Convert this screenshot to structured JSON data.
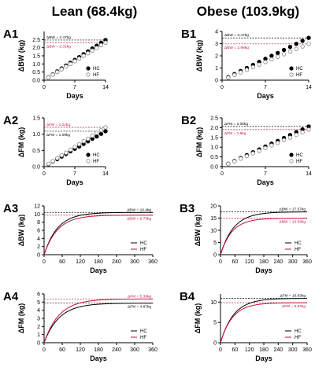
{
  "columns": [
    {
      "key": "lean",
      "title": "Lean (68.4kg)"
    },
    {
      "key": "obese",
      "title": "Obese (103.9kg)"
    }
  ],
  "colors": {
    "hc": "#000000",
    "hf": "#c0143c",
    "hf_marker_edge": "#888888"
  },
  "chart_data": [
    {
      "panel": "A1",
      "type": "scatter",
      "xlabel": "Days",
      "ylabel": "ΔBW (kg)",
      "xlim": [
        0,
        14
      ],
      "ylim": [
        0,
        3
      ],
      "xticks": [
        "0",
        "7",
        "14"
      ],
      "yticks": [
        "0.0",
        "0.5",
        "1.0",
        "1.5",
        "2.0",
        "2.5"
      ],
      "ytick_values": [
        0,
        0.5,
        1,
        1.5,
        2,
        2.5
      ],
      "xtick_values": [
        0,
        7,
        14
      ],
      "legend": "lower-right",
      "annotations": [
        {
          "text": "ΔBW = 2.47kg",
          "y": 2.47,
          "series": "HC"
        },
        {
          "text": "ΔBW = 2.31kg",
          "y": 2.31,
          "series": "HF"
        }
      ],
      "series": [
        {
          "name": "HC",
          "x": [
            1,
            2,
            3,
            4,
            5,
            6,
            7,
            8,
            9,
            10,
            11,
            12,
            13,
            14
          ],
          "y": [
            0.18,
            0.36,
            0.54,
            0.72,
            0.9,
            1.07,
            1.25,
            1.42,
            1.6,
            1.77,
            1.95,
            2.12,
            2.3,
            2.47
          ]
        },
        {
          "name": "HF",
          "x": [
            1,
            2,
            3,
            4,
            5,
            6,
            7,
            8,
            9,
            10,
            11,
            12,
            13,
            14
          ],
          "y": [
            0.17,
            0.34,
            0.5,
            0.67,
            0.84,
            1.0,
            1.17,
            1.33,
            1.5,
            1.66,
            1.82,
            1.98,
            2.15,
            2.31
          ]
        }
      ]
    },
    {
      "panel": "B1",
      "type": "scatter",
      "xlabel": "Days",
      "ylabel": "ΔBW (kg)",
      "xlim": [
        0,
        14
      ],
      "ylim": [
        0,
        4
      ],
      "xticks": [
        "0",
        "7",
        "14"
      ],
      "yticks": [
        "0",
        "1",
        "2",
        "3",
        "4"
      ],
      "ytick_values": [
        0,
        1,
        2,
        3,
        4
      ],
      "xtick_values": [
        0,
        7,
        14
      ],
      "legend": "lower-right",
      "annotations": [
        {
          "text": "ΔBW = 3.47kg",
          "y": 3.47,
          "series": "HC"
        },
        {
          "text": "ΔBW = 2.98kg",
          "y": 2.98,
          "series": "HF"
        }
      ],
      "series": [
        {
          "name": "HC",
          "x": [
            1,
            2,
            3,
            4,
            5,
            6,
            7,
            8,
            9,
            10,
            11,
            12,
            13,
            14
          ],
          "y": [
            0.25,
            0.5,
            0.75,
            1.0,
            1.25,
            1.5,
            1.75,
            2.0,
            2.23,
            2.48,
            2.73,
            2.98,
            3.23,
            3.47
          ]
        },
        {
          "name": "HF",
          "x": [
            1,
            2,
            3,
            4,
            5,
            6,
            7,
            8,
            9,
            10,
            11,
            12,
            13,
            14
          ],
          "y": [
            0.21,
            0.43,
            0.64,
            0.85,
            1.07,
            1.28,
            1.49,
            1.71,
            1.92,
            2.13,
            2.34,
            2.56,
            2.77,
            2.98
          ]
        }
      ]
    },
    {
      "panel": "A2",
      "type": "scatter",
      "xlabel": "Days",
      "ylabel": "ΔFM (kg)",
      "xlim": [
        0,
        14
      ],
      "ylim": [
        0,
        1.5
      ],
      "xticks": [
        "0",
        "7",
        "14"
      ],
      "yticks": [
        "0.0",
        "0.5",
        "1.0",
        "1.5"
      ],
      "ytick_values": [
        0,
        0.5,
        1,
        1.5
      ],
      "xtick_values": [
        0,
        7,
        14
      ],
      "legend": "lower-right",
      "annotations": [
        {
          "text": "ΔFM = 1.21kg",
          "y": 1.21,
          "series": "HF"
        },
        {
          "text": "ΔFM = 1.09kg",
          "y": 1.09,
          "series": "HC"
        }
      ],
      "series": [
        {
          "name": "HC",
          "x": [
            1,
            2,
            3,
            4,
            5,
            6,
            7,
            8,
            9,
            10,
            11,
            12,
            13,
            14
          ],
          "y": [
            0.08,
            0.16,
            0.23,
            0.31,
            0.39,
            0.47,
            0.55,
            0.62,
            0.7,
            0.78,
            0.86,
            0.93,
            1.01,
            1.09
          ]
        },
        {
          "name": "HF",
          "x": [
            1,
            2,
            3,
            4,
            5,
            6,
            7,
            8,
            9,
            10,
            11,
            12,
            13,
            14
          ],
          "y": [
            0.09,
            0.17,
            0.26,
            0.35,
            0.43,
            0.52,
            0.61,
            0.69,
            0.78,
            0.86,
            0.95,
            1.04,
            1.12,
            1.21
          ]
        }
      ]
    },
    {
      "panel": "B2",
      "type": "scatter",
      "xlabel": "Days",
      "ylabel": "ΔFM (kg)",
      "xlim": [
        0,
        14
      ],
      "ylim": [
        0,
        2.5
      ],
      "xticks": [
        "0",
        "7",
        "14"
      ],
      "yticks": [
        "0.0",
        "0.5",
        "1.0",
        "1.5",
        "2.0",
        "2.5"
      ],
      "ytick_values": [
        0,
        0.5,
        1,
        1.5,
        2,
        2.5
      ],
      "xtick_values": [
        0,
        7,
        14
      ],
      "legend": "lower-right",
      "annotations": [
        {
          "text": "ΔFM = 2.06kg",
          "y": 2.06,
          "series": "HC"
        },
        {
          "text": "ΔFM = 1.9kg",
          "y": 1.9,
          "series": "HF"
        }
      ],
      "series": [
        {
          "name": "HC",
          "x": [
            1,
            2,
            3,
            4,
            5,
            6,
            7,
            8,
            9,
            10,
            11,
            12,
            13,
            14
          ],
          "y": [
            0.15,
            0.29,
            0.44,
            0.59,
            0.74,
            0.88,
            1.03,
            1.18,
            1.32,
            1.47,
            1.62,
            1.77,
            1.91,
            2.06
          ]
        },
        {
          "name": "HF",
          "x": [
            1,
            2,
            3,
            4,
            5,
            6,
            7,
            8,
            9,
            10,
            11,
            12,
            13,
            14
          ],
          "y": [
            0.14,
            0.27,
            0.41,
            0.54,
            0.68,
            0.81,
            0.95,
            1.09,
            1.22,
            1.36,
            1.49,
            1.63,
            1.76,
            1.9
          ]
        }
      ]
    },
    {
      "panel": "A3",
      "type": "line",
      "xlabel": "Days",
      "ylabel": "ΔBW (kg)",
      "xlim": [
        0,
        360
      ],
      "ylim": [
        0,
        12
      ],
      "xticks": [
        "0",
        "60",
        "120",
        "180",
        "240",
        "300",
        "360"
      ],
      "xtick_values": [
        0,
        60,
        120,
        180,
        240,
        300,
        360
      ],
      "yticks": [
        "0",
        "2",
        "4",
        "6",
        "8",
        "10",
        "12"
      ],
      "ytick_values": [
        0,
        2,
        4,
        6,
        8,
        10,
        12
      ],
      "legend": "lower-right",
      "annotations": [
        {
          "text": "ΔBW = 10.4kg",
          "y": 10.4,
          "series": "HC"
        },
        {
          "text": "ΔBW = 9.73kg",
          "y": 9.73,
          "series": "HF"
        }
      ],
      "series": [
        {
          "name": "HC",
          "plateau": 10.4,
          "tau": 45
        },
        {
          "name": "HF",
          "plateau": 9.73,
          "tau": 45
        }
      ]
    },
    {
      "panel": "B3",
      "type": "line",
      "xlabel": "Days",
      "ylabel": "ΔBW (kg)",
      "xlim": [
        0,
        360
      ],
      "ylim": [
        0,
        20
      ],
      "xticks": [
        "0",
        "60",
        "120",
        "180",
        "240",
        "300",
        "360"
      ],
      "xtick_values": [
        0,
        60,
        120,
        180,
        240,
        300,
        360
      ],
      "yticks": [
        "0",
        "5",
        "10",
        "15",
        "20"
      ],
      "ytick_values": [
        0,
        5,
        10,
        15,
        20
      ],
      "legend": "lower-right",
      "annotations": [
        {
          "text": "ΔBW = 17.57kg",
          "y": 17.57,
          "series": "HC"
        },
        {
          "text": "ΔBW = 14.93kg",
          "y": 14.93,
          "series": "HF"
        }
      ],
      "series": [
        {
          "name": "HC",
          "plateau": 17.57,
          "tau": 55
        },
        {
          "name": "HF",
          "plateau": 14.93,
          "tau": 48
        }
      ]
    },
    {
      "panel": "A4",
      "type": "line",
      "xlabel": "Days",
      "ylabel": "ΔFM (kg)",
      "xlim": [
        0,
        360
      ],
      "ylim": [
        0,
        6
      ],
      "xticks": [
        "0",
        "60",
        "120",
        "180",
        "240",
        "300",
        "360"
      ],
      "xtick_values": [
        0,
        60,
        120,
        180,
        240,
        300,
        360
      ],
      "yticks": [
        "0",
        "1",
        "2",
        "3",
        "4",
        "5",
        "6"
      ],
      "ytick_values": [
        0,
        1,
        2,
        3,
        4,
        5,
        6
      ],
      "legend": "lower-right",
      "annotations": [
        {
          "text": "ΔFM = 5.39kg",
          "y": 5.39,
          "series": "HF"
        },
        {
          "text": "ΔFM = 4.87kg",
          "y": 4.87,
          "series": "HC"
        }
      ],
      "series": [
        {
          "name": "HC",
          "plateau": 4.87,
          "tau": 50
        },
        {
          "name": "HF",
          "plateau": 5.39,
          "tau": 50
        }
      ]
    },
    {
      "panel": "B4",
      "type": "line",
      "xlabel": "Days",
      "ylabel": "ΔFM (kg)",
      "xlim": [
        0,
        360
      ],
      "ylim": [
        0,
        12
      ],
      "xticks": [
        "0",
        "60",
        "120",
        "180",
        "240",
        "300",
        "360"
      ],
      "xtick_values": [
        0,
        60,
        120,
        180,
        240,
        300,
        360
      ],
      "yticks": [
        "0",
        "5",
        "10"
      ],
      "ytick_values": [
        0,
        5,
        10
      ],
      "legend": "lower-right",
      "annotations": [
        {
          "text": "ΔFM = 10.93kg",
          "y": 10.93,
          "series": "HC"
        },
        {
          "text": "ΔFM = 9.84kg",
          "y": 9.84,
          "series": "HF"
        }
      ],
      "series": [
        {
          "name": "HC",
          "plateau": 10.93,
          "tau": 55
        },
        {
          "name": "HF",
          "plateau": 9.84,
          "tau": 50
        }
      ]
    }
  ]
}
